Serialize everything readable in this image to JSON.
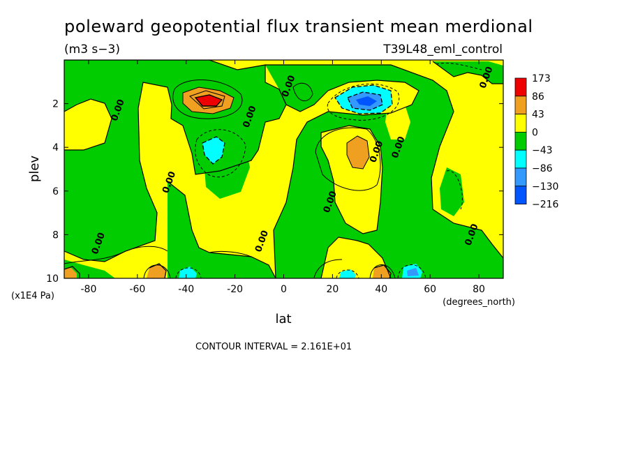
{
  "chart_data": {
    "type": "heatmap",
    "title": "poleward geopotential flux transient mean merdional",
    "units": "(m3 s−3)",
    "run_label": "T39L48_eml_control",
    "xlabel": "lat",
    "x_units": "(degrees_north)",
    "ylabel": "plev",
    "y_units": "(x1E4 Pa)",
    "xlim": [
      -90,
      90
    ],
    "ylim": [
      10,
      0
    ],
    "x_ticks": [
      "-80",
      "-60",
      "-40",
      "-20",
      "0",
      "20",
      "40",
      "60",
      "80"
    ],
    "x_tick_values": [
      -80,
      -60,
      -40,
      -20,
      0,
      20,
      40,
      60,
      80
    ],
    "y_ticks": [
      "2",
      "4",
      "6",
      "8",
      "10"
    ],
    "y_tick_values": [
      2,
      4,
      6,
      8,
      10
    ],
    "contour_interval_text": "CONTOUR INTERVAL = 2.161E+01",
    "colorbar": {
      "levels": [
        "173",
        "86",
        "43",
        "0",
        "−43",
        "−86",
        "−130",
        "−216"
      ],
      "colors": [
        "#ee0000",
        "#f0a020",
        "#ffff00",
        "#00cc00",
        "#00ffff",
        "#3399ff",
        "#0055ff"
      ]
    },
    "contour_labels": [
      {
        "text": "0.00",
        "lat": -68,
        "plev": 2.3
      },
      {
        "text": "0.00",
        "lat": -47,
        "plev": 5.6
      },
      {
        "text": "0.00",
        "lat": -76,
        "plev": 8.4
      },
      {
        "text": "0.00",
        "lat": -14,
        "plev": 2.6
      },
      {
        "text": "0.00",
        "lat": 2,
        "plev": 1.2
      },
      {
        "text": "0.00",
        "lat": -9,
        "plev": 8.3
      },
      {
        "text": "0.00",
        "lat": 19,
        "plev": 6.5
      },
      {
        "text": "0.00",
        "lat": 38,
        "plev": 4.2
      },
      {
        "text": "0.00",
        "lat": 47,
        "plev": 4.0
      },
      {
        "text": "0.00",
        "lat": 83,
        "plev": 0.8
      },
      {
        "text": "0.00",
        "lat": 77,
        "plev": 8.0
      }
    ],
    "features": [
      {
        "kind": "max",
        "lat": -30,
        "plev": 2.0,
        "value": 173
      },
      {
        "kind": "max",
        "lat": 31,
        "plev": 4.2,
        "value": 50
      },
      {
        "kind": "min",
        "lat": 35,
        "plev": 2.0,
        "value": -216
      },
      {
        "kind": "min",
        "lat": -28,
        "plev": 4.0,
        "value": -50
      }
    ]
  }
}
